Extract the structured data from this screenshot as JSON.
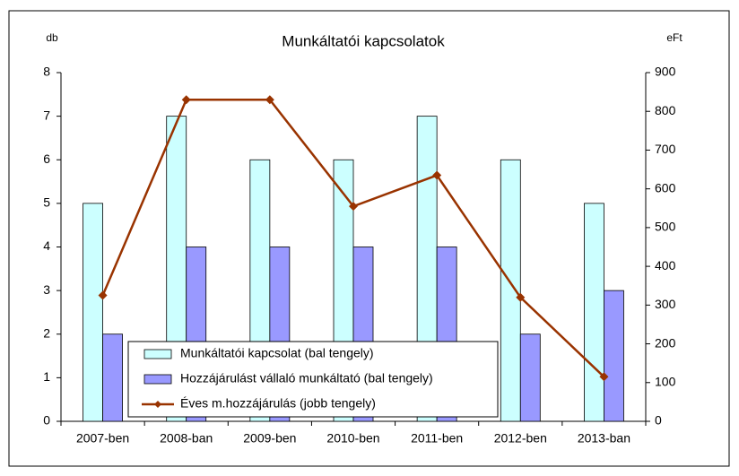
{
  "chart_data": {
    "type": "bar_line",
    "title": "Munkáltatói kapcsolatok",
    "y_label": "db",
    "y2_label": "eFt",
    "categories": [
      "2007-ben",
      "2008-ban",
      "2009-ben",
      "2010-ben",
      "2011-ben",
      "2012-ben",
      "2013-ban"
    ],
    "series": [
      {
        "name": "Munkáltatói kapcsolat (bal tengely)",
        "color": "#ccffff",
        "type": "bar",
        "values": [
          5,
          7,
          6,
          6,
          7,
          6,
          5
        ]
      },
      {
        "name": "Hozzájárulást vállaló munkáltató (bal tengely)",
        "color": "#9999ff",
        "type": "bar",
        "values": [
          2,
          4,
          4,
          4,
          4,
          2,
          3
        ]
      },
      {
        "name": "Éves m.hozzájárulás (jobb tengely)",
        "color": "#993300",
        "type": "line",
        "axis": "y2",
        "values": [
          325,
          830,
          830,
          555,
          635,
          320,
          115
        ]
      }
    ],
    "ylim": [
      0,
      8
    ],
    "yticks": [
      0,
      1,
      2,
      3,
      4,
      5,
      6,
      7,
      8
    ],
    "y2lim": [
      0,
      900
    ],
    "y2ticks": [
      0,
      100,
      200,
      300,
      400,
      500,
      600,
      700,
      800,
      900
    ],
    "grid": false,
    "legend": "lower center"
  }
}
